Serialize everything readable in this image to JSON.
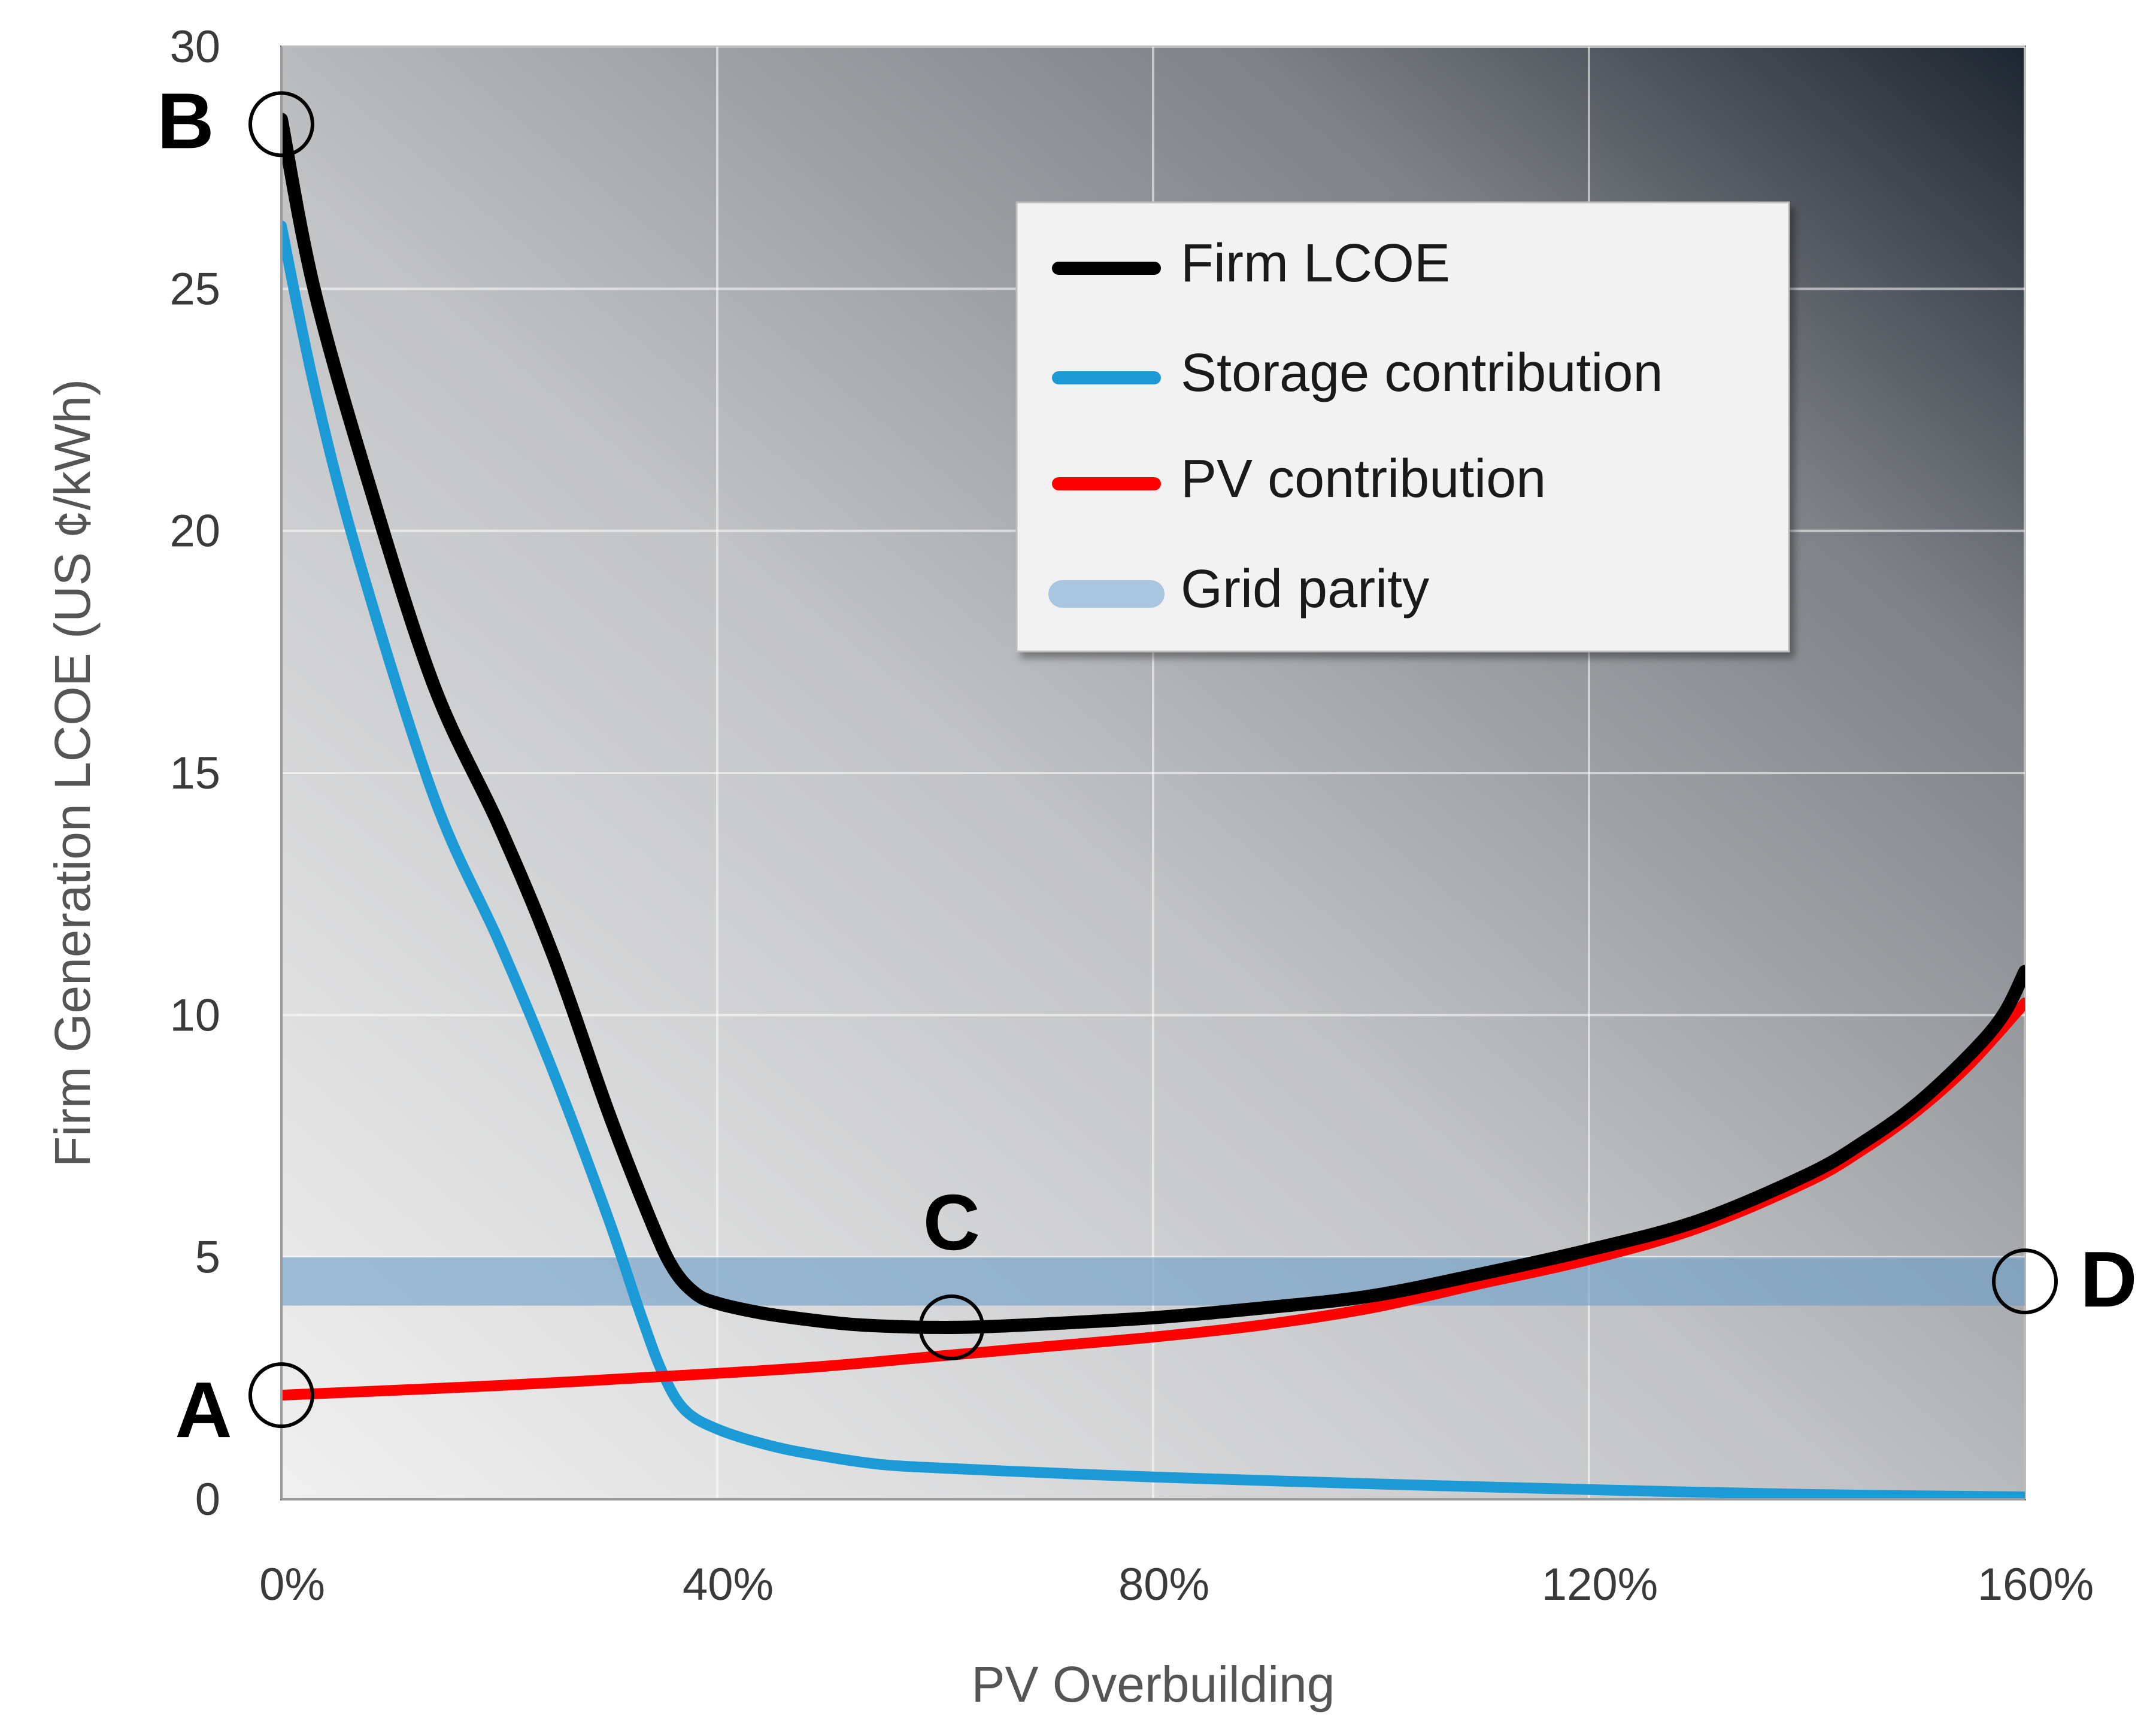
{
  "chart_data": {
    "type": "line",
    "title": "",
    "xlabel": "PV Overbuilding",
    "ylabel": "Firm Generation LCOE (US ¢/kWh)",
    "xlim": [
      0,
      160
    ],
    "ylim": [
      0,
      30
    ],
    "x_ticks": [
      "0%",
      "40%",
      "80%",
      "120%",
      "160%"
    ],
    "y_ticks": [
      "0",
      "5",
      "10",
      "15",
      "20",
      "25",
      "30"
    ],
    "grid": true,
    "legend_position": "top-right",
    "colors": {
      "firm": "#000000",
      "storage": "#1c9ad6",
      "pv": "#ff0000",
      "grid_parity": "#6e9ec6"
    },
    "series": [
      {
        "name": "Firm LCOE",
        "x": [
          0,
          3,
          8,
          14,
          20,
          25,
          30,
          34,
          36,
          38,
          40,
          44,
          48,
          52,
          56,
          60,
          64,
          70,
          80,
          90,
          100,
          110,
          120,
          130,
          140,
          145,
          150,
          155,
          158,
          160
        ],
        "y": [
          28.5,
          25.0,
          21.0,
          16.8,
          13.9,
          11.2,
          8.0,
          5.7,
          4.75,
          4.25,
          4.05,
          3.85,
          3.72,
          3.62,
          3.57,
          3.55,
          3.56,
          3.62,
          3.75,
          3.95,
          4.2,
          4.65,
          5.15,
          5.75,
          6.7,
          7.35,
          8.15,
          9.2,
          10.0,
          10.9
        ]
      },
      {
        "name": "Storage contribution",
        "x": [
          0,
          3,
          7,
          14,
          20,
          25,
          30,
          33,
          35,
          37,
          40,
          45,
          50,
          55,
          60,
          70,
          80,
          100,
          120,
          140,
          160
        ],
        "y": [
          26.3,
          23.0,
          19.5,
          14.5,
          11.5,
          8.8,
          5.8,
          3.8,
          2.6,
          1.85,
          1.45,
          1.1,
          0.88,
          0.72,
          0.65,
          0.55,
          0.46,
          0.32,
          0.2,
          0.1,
          0.05
        ]
      },
      {
        "name": "PV contribution",
        "x": [
          0,
          20,
          40,
          50,
          60,
          70,
          80,
          90,
          100,
          110,
          120,
          130,
          140,
          145,
          150,
          155,
          160
        ],
        "y": [
          2.15,
          2.35,
          2.6,
          2.75,
          2.95,
          3.15,
          3.35,
          3.6,
          3.95,
          4.45,
          4.95,
          5.6,
          6.55,
          7.2,
          8.0,
          9.0,
          10.25
        ]
      }
    ],
    "grid_parity": {
      "name": "Grid parity",
      "low": 4.0,
      "high": 5.0
    },
    "annotations": [
      {
        "label": "A",
        "x": 0,
        "y": 2.15
      },
      {
        "label": "B",
        "x": 0,
        "y": 28.4
      },
      {
        "label": "C",
        "x": 61.5,
        "y": 3.55
      },
      {
        "label": "D",
        "x": 160,
        "y": 4.5
      }
    ]
  }
}
